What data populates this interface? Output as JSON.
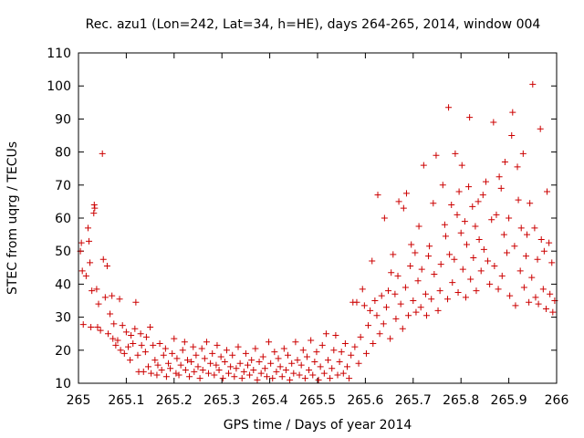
{
  "chart_data": {
    "type": "scatter",
    "title": "Rec. azu1 (Lon=242, Lat=34, h=HE), days 264-265, 2014, window 004",
    "xlabel": "GPS time / Days of year 2014",
    "ylabel": "STEC from uqrg / TECUs",
    "xlim": [
      265,
      266
    ],
    "ylim": [
      10,
      110
    ],
    "xticks": [
      "265",
      "265.1",
      "265.2",
      "265.3",
      "265.4",
      "265.5",
      "265.6",
      "265.7",
      "265.8",
      "265.9",
      "266"
    ],
    "yticks": [
      "10",
      "20",
      "30",
      "40",
      "50",
      "60",
      "70",
      "80",
      "90",
      "100",
      "110"
    ],
    "grid": false,
    "marker": "+",
    "colors": {
      "series": "#cc0000",
      "axis": "#000000"
    },
    "series": [
      {
        "points": [
          [
            265.004,
            50.0
          ],
          [
            265.006,
            52.5
          ],
          [
            265.008,
            44.0
          ],
          [
            265.01,
            27.8
          ],
          [
            265.016,
            42.5
          ],
          [
            265.02,
            57.0
          ],
          [
            265.022,
            53.0
          ],
          [
            265.024,
            46.5
          ],
          [
            265.026,
            27.0
          ],
          [
            265.028,
            38.0
          ],
          [
            265.032,
            61.5
          ],
          [
            265.033,
            64.0
          ],
          [
            265.034,
            63.0
          ],
          [
            265.038,
            38.5
          ],
          [
            265.04,
            27.0
          ],
          [
            265.042,
            34.0
          ],
          [
            265.046,
            26.0
          ],
          [
            265.05,
            79.5
          ],
          [
            265.052,
            47.5
          ],
          [
            265.056,
            36.0
          ],
          [
            265.06,
            45.5
          ],
          [
            265.062,
            25.0
          ],
          [
            265.066,
            31.0
          ],
          [
            265.07,
            36.5
          ],
          [
            265.072,
            23.5
          ],
          [
            265.074,
            28.0
          ],
          [
            265.078,
            21.5
          ],
          [
            265.082,
            23.0
          ],
          [
            265.086,
            35.5
          ],
          [
            265.088,
            20.0
          ],
          [
            265.092,
            27.5
          ],
          [
            265.096,
            19.0
          ],
          [
            265.1,
            25.5
          ],
          [
            265.104,
            21.0
          ],
          [
            265.108,
            17.0
          ],
          [
            265.11,
            24.5
          ],
          [
            265.114,
            22.0
          ],
          [
            265.118,
            26.5
          ],
          [
            265.12,
            34.5
          ],
          [
            265.124,
            18.5
          ],
          [
            265.126,
            13.5
          ],
          [
            265.13,
            25.0
          ],
          [
            265.132,
            21.5
          ],
          [
            265.136,
            13.5
          ],
          [
            265.14,
            19.5
          ],
          [
            265.142,
            24.0
          ],
          [
            265.146,
            15.0
          ],
          [
            265.15,
            27.0
          ],
          [
            265.152,
            13.0
          ],
          [
            265.156,
            21.5
          ],
          [
            265.16,
            17.0
          ],
          [
            265.164,
            12.5
          ],
          [
            265.166,
            15.5
          ],
          [
            265.17,
            22.0
          ],
          [
            265.174,
            14.0
          ],
          [
            265.178,
            18.5
          ],
          [
            265.182,
            20.5
          ],
          [
            265.184,
            12.0
          ],
          [
            265.188,
            16.0
          ],
          [
            265.192,
            14.5
          ],
          [
            265.196,
            19.0
          ],
          [
            265.2,
            23.5
          ],
          [
            265.204,
            13.0
          ],
          [
            265.206,
            17.5
          ],
          [
            265.21,
            12.5
          ],
          [
            265.214,
            15.5
          ],
          [
            265.218,
            20.0
          ],
          [
            265.222,
            22.5
          ],
          [
            265.224,
            14.0
          ],
          [
            265.228,
            17.0
          ],
          [
            265.232,
            12.0
          ],
          [
            265.236,
            16.5
          ],
          [
            265.24,
            21.0
          ],
          [
            265.242,
            13.5
          ],
          [
            265.246,
            18.5
          ],
          [
            265.25,
            15.0
          ],
          [
            265.254,
            11.5
          ],
          [
            265.258,
            20.5
          ],
          [
            265.26,
            14.0
          ],
          [
            265.264,
            17.5
          ],
          [
            265.268,
            22.5
          ],
          [
            265.272,
            13.0
          ],
          [
            265.276,
            16.0
          ],
          [
            265.28,
            19.0
          ],
          [
            265.284,
            12.5
          ],
          [
            265.288,
            15.5
          ],
          [
            265.29,
            21.5
          ],
          [
            265.294,
            14.0
          ],
          [
            265.298,
            18.0
          ],
          [
            265.302,
            11.5
          ],
          [
            265.306,
            16.5
          ],
          [
            265.31,
            20.0
          ],
          [
            265.314,
            13.0
          ],
          [
            265.318,
            15.0
          ],
          [
            265.322,
            18.5
          ],
          [
            265.326,
            12.0
          ],
          [
            265.33,
            14.5
          ],
          [
            265.334,
            21.0
          ],
          [
            265.338,
            16.0
          ],
          [
            265.342,
            11.5
          ],
          [
            265.346,
            13.5
          ],
          [
            265.35,
            19.0
          ],
          [
            265.354,
            15.5
          ],
          [
            265.358,
            12.5
          ],
          [
            265.362,
            17.0
          ],
          [
            265.366,
            14.0
          ],
          [
            265.37,
            20.5
          ],
          [
            265.374,
            11.0
          ],
          [
            265.378,
            16.5
          ],
          [
            265.382,
            13.0
          ],
          [
            265.386,
            18.0
          ],
          [
            265.39,
            14.5
          ],
          [
            265.394,
            12.0
          ],
          [
            265.398,
            22.5
          ],
          [
            265.402,
            16.0
          ],
          [
            265.406,
            11.5
          ],
          [
            265.41,
            19.5
          ],
          [
            265.414,
            13.5
          ],
          [
            265.418,
            17.5
          ],
          [
            265.422,
            15.0
          ],
          [
            265.426,
            12.0
          ],
          [
            265.43,
            20.5
          ],
          [
            265.434,
            14.0
          ],
          [
            265.438,
            18.5
          ],
          [
            265.442,
            11.0
          ],
          [
            265.446,
            16.0
          ],
          [
            265.45,
            13.0
          ],
          [
            265.454,
            22.5
          ],
          [
            265.458,
            17.0
          ],
          [
            265.462,
            12.5
          ],
          [
            265.466,
            15.5
          ],
          [
            265.47,
            20.0
          ],
          [
            265.474,
            11.5
          ],
          [
            265.478,
            18.0
          ],
          [
            265.482,
            14.0
          ],
          [
            265.486,
            23.0
          ],
          [
            265.49,
            12.5
          ],
          [
            265.494,
            16.5
          ],
          [
            265.498,
            19.5
          ],
          [
            265.502,
            11.0
          ],
          [
            265.506,
            15.0
          ],
          [
            265.51,
            21.5
          ],
          [
            265.514,
            13.0
          ],
          [
            265.518,
            25.0
          ],
          [
            265.522,
            17.0
          ],
          [
            265.526,
            11.5
          ],
          [
            265.53,
            14.5
          ],
          [
            265.534,
            20.0
          ],
          [
            265.538,
            24.5
          ],
          [
            265.542,
            12.5
          ],
          [
            265.546,
            16.5
          ],
          [
            265.55,
            19.5
          ],
          [
            265.554,
            13.0
          ],
          [
            265.558,
            22.0
          ],
          [
            265.562,
            15.0
          ],
          [
            265.566,
            11.5
          ],
          [
            265.57,
            18.5
          ],
          [
            265.574,
            34.5
          ],
          [
            265.578,
            21.0
          ],
          [
            265.582,
            34.5
          ],
          [
            265.586,
            16.0
          ],
          [
            265.59,
            24.0
          ],
          [
            265.594,
            38.5
          ],
          [
            265.598,
            33.5
          ],
          [
            265.602,
            19.0
          ],
          [
            265.606,
            27.5
          ],
          [
            265.61,
            32.0
          ],
          [
            265.614,
            47.0
          ],
          [
            265.616,
            22.0
          ],
          [
            265.62,
            35.0
          ],
          [
            265.624,
            30.5
          ],
          [
            265.626,
            67.0
          ],
          [
            265.63,
            25.0
          ],
          [
            265.634,
            36.5
          ],
          [
            265.638,
            28.0
          ],
          [
            265.64,
            60.0
          ],
          [
            265.644,
            33.0
          ],
          [
            265.648,
            38.0
          ],
          [
            265.652,
            23.5
          ],
          [
            265.654,
            43.5
          ],
          [
            265.658,
            49.0
          ],
          [
            265.662,
            37.0
          ],
          [
            265.664,
            29.5
          ],
          [
            265.668,
            42.5
          ],
          [
            265.67,
            65.0
          ],
          [
            265.674,
            34.0
          ],
          [
            265.678,
            26.5
          ],
          [
            265.68,
            63.0
          ],
          [
            265.684,
            39.0
          ],
          [
            265.686,
            67.5
          ],
          [
            265.69,
            30.5
          ],
          [
            265.694,
            45.5
          ],
          [
            265.696,
            52.0
          ],
          [
            265.7,
            35.0
          ],
          [
            265.704,
            49.5
          ],
          [
            265.706,
            31.5
          ],
          [
            265.71,
            41.0
          ],
          [
            265.712,
            57.5
          ],
          [
            265.716,
            33.0
          ],
          [
            265.718,
            44.5
          ],
          [
            265.722,
            76.0
          ],
          [
            265.726,
            37.0
          ],
          [
            265.728,
            30.5
          ],
          [
            265.732,
            48.5
          ],
          [
            265.734,
            51.5
          ],
          [
            265.738,
            35.5
          ],
          [
            265.742,
            64.5
          ],
          [
            265.744,
            43.0
          ],
          [
            265.748,
            79.0
          ],
          [
            265.752,
            32.0
          ],
          [
            265.756,
            38.0
          ],
          [
            265.758,
            46.0
          ],
          [
            265.762,
            70.0
          ],
          [
            265.766,
            58.0
          ],
          [
            265.768,
            54.5
          ],
          [
            265.772,
            35.5
          ],
          [
            265.774,
            93.5
          ],
          [
            265.776,
            49.0
          ],
          [
            265.78,
            64.0
          ],
          [
            265.782,
            40.5
          ],
          [
            265.786,
            47.5
          ],
          [
            265.788,
            79.5
          ],
          [
            265.792,
            61.0
          ],
          [
            265.794,
            37.5
          ],
          [
            265.796,
            68.0
          ],
          [
            265.8,
            55.5
          ],
          [
            265.802,
            76.0
          ],
          [
            265.804,
            44.5
          ],
          [
            265.808,
            59.0
          ],
          [
            265.81,
            36.0
          ],
          [
            265.812,
            52.0
          ],
          [
            265.816,
            69.5
          ],
          [
            265.818,
            90.5
          ],
          [
            265.82,
            41.5
          ],
          [
            265.824,
            63.5
          ],
          [
            265.826,
            48.0
          ],
          [
            265.83,
            57.5
          ],
          [
            265.832,
            38.0
          ],
          [
            265.836,
            65.0
          ],
          [
            265.838,
            53.5
          ],
          [
            265.842,
            44.0
          ],
          [
            265.846,
            67.0
          ],
          [
            265.848,
            50.5
          ],
          [
            265.852,
            71.0
          ],
          [
            265.856,
            47.0
          ],
          [
            265.86,
            40.0
          ],
          [
            265.864,
            59.5
          ],
          [
            265.868,
            89.0
          ],
          [
            265.87,
            45.5
          ],
          [
            265.874,
            61.0
          ],
          [
            265.878,
            38.5
          ],
          [
            265.88,
            72.5
          ],
          [
            265.884,
            69.0
          ],
          [
            265.886,
            42.5
          ],
          [
            265.89,
            55.0
          ],
          [
            265.892,
            77.0
          ],
          [
            265.896,
            49.5
          ],
          [
            265.9,
            60.0
          ],
          [
            265.902,
            36.5
          ],
          [
            265.906,
            85.0
          ],
          [
            265.908,
            92.0
          ],
          [
            265.912,
            51.5
          ],
          [
            265.914,
            33.5
          ],
          [
            265.918,
            75.5
          ],
          [
            265.92,
            65.5
          ],
          [
            265.924,
            44.0
          ],
          [
            265.926,
            57.0
          ],
          [
            265.93,
            79.5
          ],
          [
            265.932,
            39.0
          ],
          [
            265.936,
            48.5
          ],
          [
            265.938,
            55.0
          ],
          [
            265.942,
            34.5
          ],
          [
            265.944,
            64.5
          ],
          [
            265.948,
            42.0
          ],
          [
            265.95,
            100.5
          ],
          [
            265.954,
            57.0
          ],
          [
            265.956,
            36.0
          ],
          [
            265.96,
            47.5
          ],
          [
            265.962,
            34.0
          ],
          [
            265.966,
            87.0
          ],
          [
            265.968,
            53.5
          ],
          [
            265.972,
            38.5
          ],
          [
            265.974,
            50.0
          ],
          [
            265.978,
            32.5
          ],
          [
            265.98,
            68.0
          ],
          [
            265.984,
            52.5
          ],
          [
            265.986,
            37.0
          ],
          [
            265.99,
            46.5
          ],
          [
            265.992,
            31.5
          ],
          [
            265.996,
            35.0
          ]
        ]
      }
    ]
  }
}
